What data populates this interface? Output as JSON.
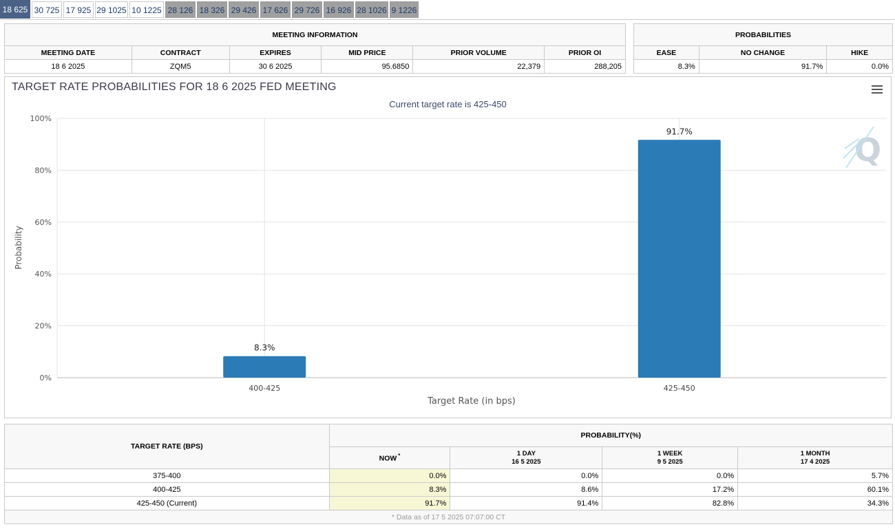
{
  "tabs": [
    {
      "label": "18 625",
      "style": "active"
    },
    {
      "label": "30 725",
      "style": "light"
    },
    {
      "label": "17 925",
      "style": "light"
    },
    {
      "label": "29 1025",
      "style": "light"
    },
    {
      "label": "10 1225",
      "style": "light"
    },
    {
      "label": "28 126",
      "style": "dark"
    },
    {
      "label": "18 326",
      "style": "dark"
    },
    {
      "label": "29 426",
      "style": "dark"
    },
    {
      "label": "17 626",
      "style": "dark"
    },
    {
      "label": "29 726",
      "style": "dark"
    },
    {
      "label": "16 926",
      "style": "dark"
    },
    {
      "label": "28 1026",
      "style": "dark"
    },
    {
      "label": "9 1226",
      "style": "dark"
    }
  ],
  "meeting_info": {
    "title": "MEETING INFORMATION",
    "headers": [
      "MEETING DATE",
      "CONTRACT",
      "EXPIRES",
      "MID PRICE",
      "PRIOR VOLUME",
      "PRIOR OI"
    ],
    "values": [
      "18 6 2025",
      "ZQM5",
      "30 6 2025",
      "95.6850",
      "22,379",
      "288,205"
    ]
  },
  "probabilities": {
    "title": "PROBABILITIES",
    "headers": [
      "EASE",
      "NO CHANGE",
      "HIKE"
    ],
    "values": [
      "8.3%",
      "91.7%",
      "0.0%"
    ]
  },
  "chart": {
    "title": "TARGET RATE PROBABILITIES FOR 18 6 2025 FED MEETING",
    "subtitle": "Current target rate is 425-450",
    "menu_icon": "hamburger-menu-icon",
    "watermark_icon": "cme-q-logo-icon",
    "bar_color": "#2b7bb6"
  },
  "chart_data": {
    "type": "bar",
    "categories": [
      "400-425",
      "425-450"
    ],
    "values": [
      8.3,
      91.7
    ],
    "data_labels": [
      "8.3%",
      "91.7%"
    ],
    "title": "TARGET RATE PROBABILITIES FOR 18 6 2025 FED MEETING",
    "subtitle": "Current target rate is 425-450",
    "xlabel": "Target Rate (in bps)",
    "ylabel": "Probability",
    "ylim": [
      0,
      100
    ],
    "yticks": [
      "0%",
      "20%",
      "40%",
      "60%",
      "80%",
      "100%"
    ],
    "ytick_values": [
      0,
      20,
      40,
      60,
      80,
      100
    ],
    "grid": true,
    "legend": "none"
  },
  "prob_table": {
    "target_header": "TARGET RATE (BPS)",
    "prob_header": "PROBABILITY(%)",
    "columns": [
      {
        "label": "NOW",
        "sup": "*",
        "date": ""
      },
      {
        "label": "1 DAY",
        "date": "16 5 2025"
      },
      {
        "label": "1 WEEK",
        "date": "9 5 2025"
      },
      {
        "label": "1 MONTH",
        "date": "17 4 2025"
      }
    ],
    "rows": [
      {
        "rate": "375-400",
        "values": [
          "0.0%",
          "0.0%",
          "0.0%",
          "5.7%"
        ]
      },
      {
        "rate": "400-425",
        "values": [
          "8.3%",
          "8.6%",
          "17.2%",
          "60.1%"
        ]
      },
      {
        "rate": "425-450 (Current)",
        "values": [
          "91.7%",
          "91.4%",
          "82.8%",
          "34.3%"
        ]
      }
    ],
    "footnote": "* Data as of 17 5 2025 07:07:00 CT"
  }
}
